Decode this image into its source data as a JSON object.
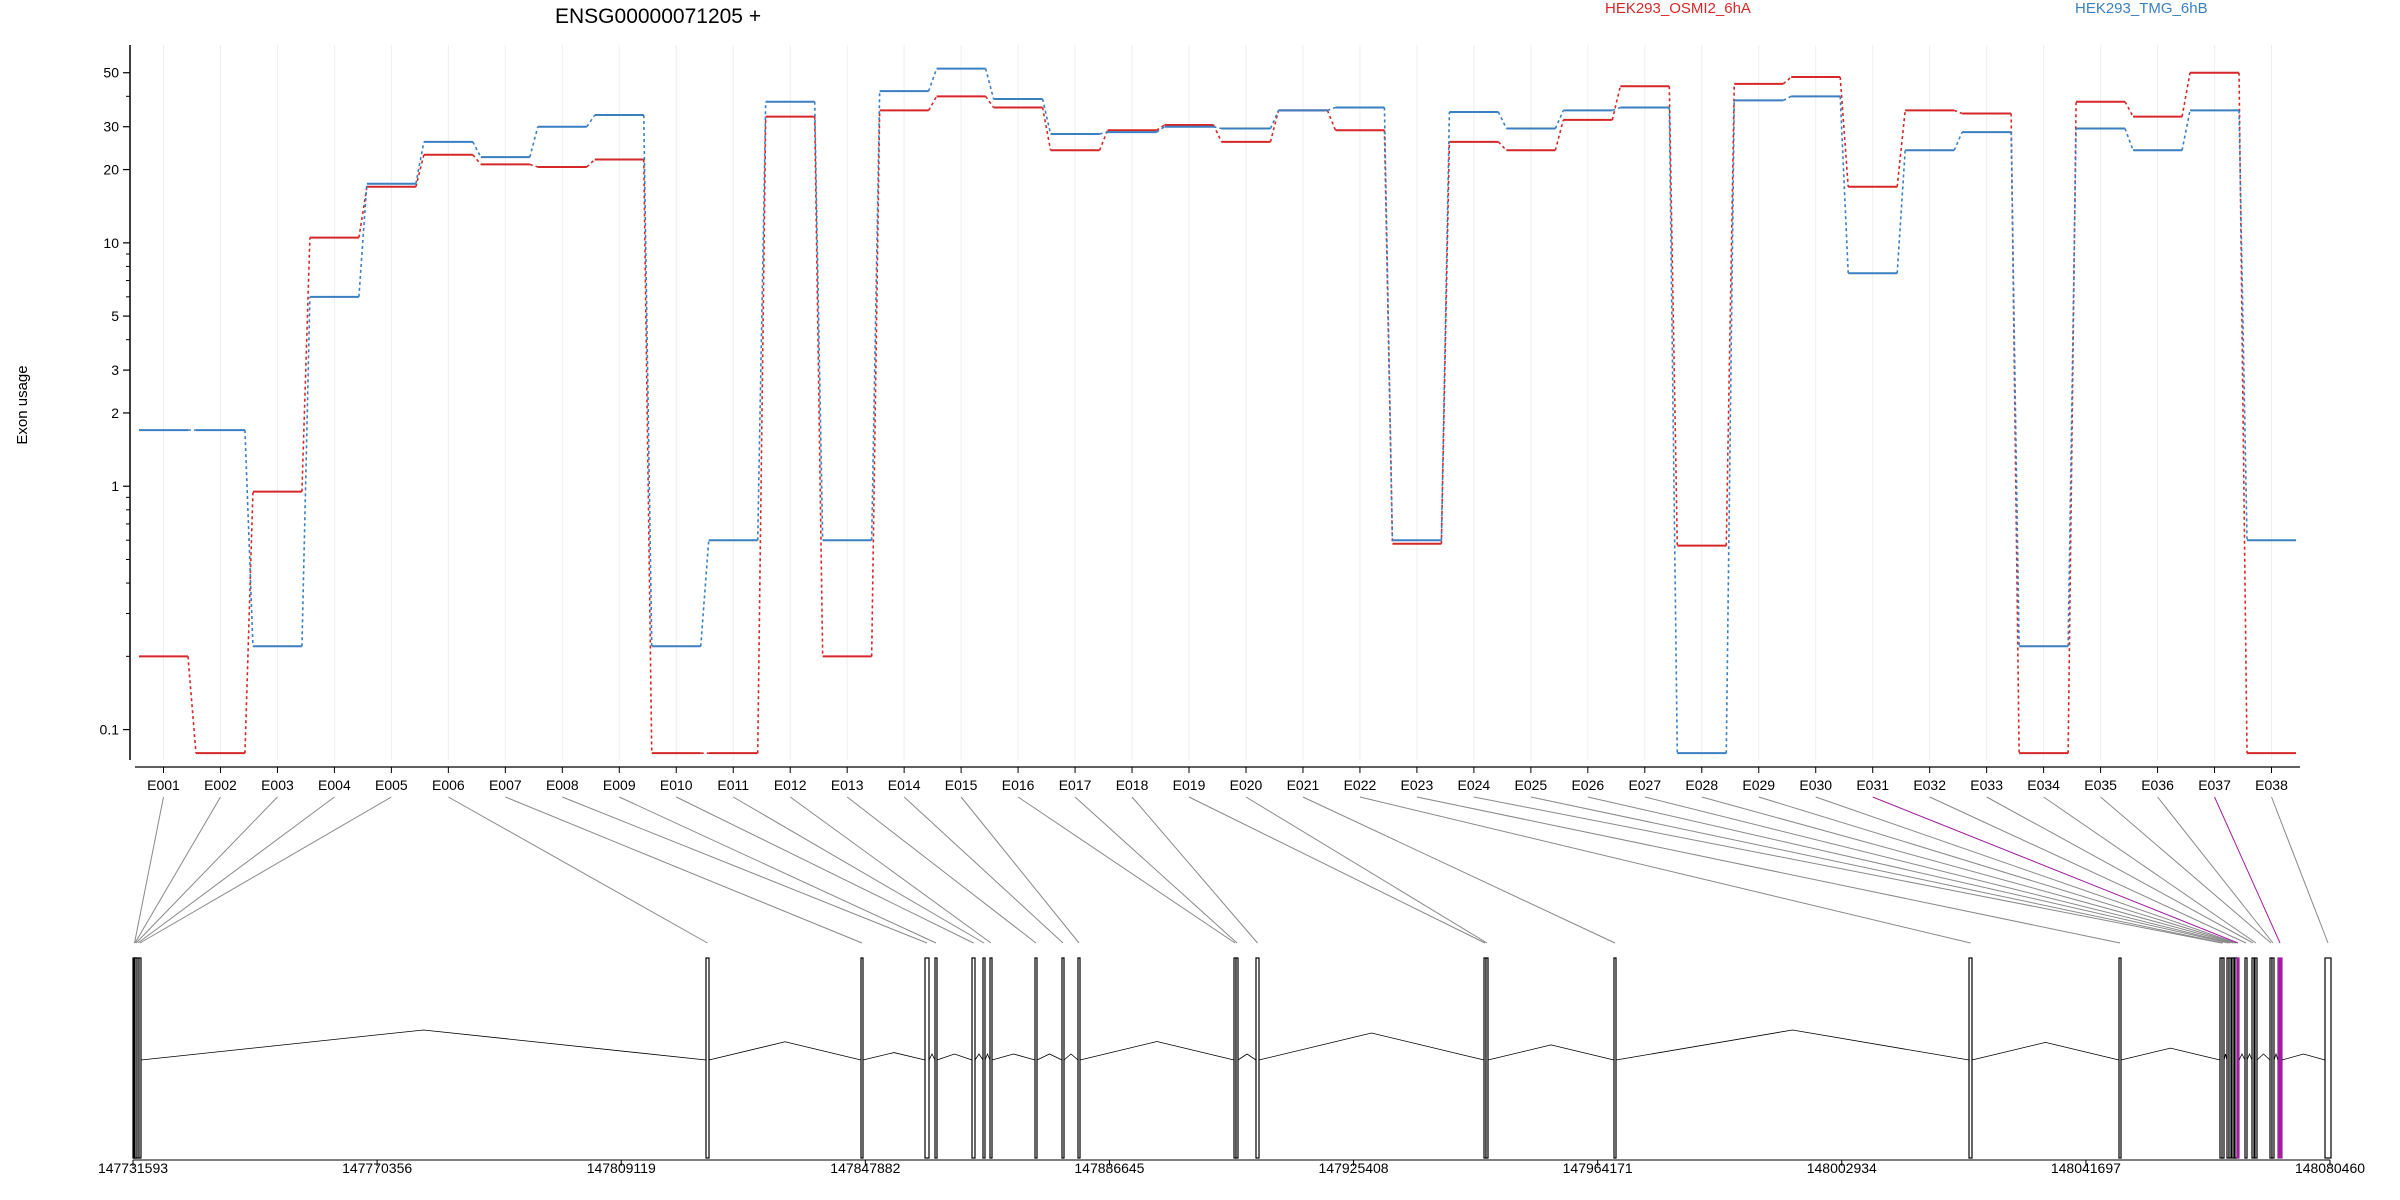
{
  "colors": {
    "osmi": "#d62728",
    "tmg": "#3a7fc2",
    "axis": "#000000",
    "connector": "#888888",
    "highlight": "#a020a0"
  },
  "chart_data": {
    "type": "line",
    "title": "ENSG00000071205 +",
    "ylabel": "Exon usage",
    "yscale": "log",
    "ylim": [
      0.075,
      65
    ],
    "yticks": [
      "0.1",
      "1",
      "2",
      "3",
      "5",
      "10",
      "20",
      "30",
      "50"
    ],
    "categories": [
      "E001",
      "E002",
      "E003",
      "E004",
      "E005",
      "E006",
      "E007",
      "E008",
      "E009",
      "E010",
      "E011",
      "E012",
      "E013",
      "E014",
      "E015",
      "E016",
      "E017",
      "E018",
      "E019",
      "E020",
      "E021",
      "E022",
      "E023",
      "E024",
      "E025",
      "E026",
      "E027",
      "E028",
      "E029",
      "E030",
      "E031",
      "E032",
      "E033",
      "E034",
      "E035",
      "E036",
      "E037",
      "E038"
    ],
    "series": [
      {
        "name": "HEK293_OSMI2_6hA",
        "values": [
          0.2,
          0.08,
          0.95,
          10.5,
          17,
          23,
          21,
          20.5,
          22,
          0.08,
          0.08,
          33,
          0.2,
          35,
          40,
          36,
          24,
          29,
          30.5,
          26,
          35,
          29,
          0.58,
          26,
          24,
          32,
          44,
          0.57,
          45,
          48,
          17,
          35,
          34,
          0.08,
          38,
          33,
          50,
          0.08
        ]
      },
      {
        "name": "HEK293_TMG_6hB",
        "values": [
          1.7,
          1.7,
          0.22,
          6,
          17.5,
          26,
          22.5,
          30,
          33.5,
          0.22,
          0.6,
          38,
          0.6,
          42,
          52,
          39,
          28,
          28.5,
          30,
          29.5,
          35,
          36,
          0.6,
          34.5,
          29.5,
          35,
          36,
          0.08,
          38.5,
          40,
          7.5,
          24,
          28.5,
          0.22,
          29.5,
          24,
          35,
          0.6
        ]
      }
    ],
    "genome_coords": [
      "147731593",
      "147770356",
      "147809119",
      "147847882",
      "147886645",
      "147925408",
      "147964171",
      "148002934",
      "148041697",
      "148080460"
    ],
    "highlighted_exons": [
      "E031",
      "E037"
    ]
  }
}
